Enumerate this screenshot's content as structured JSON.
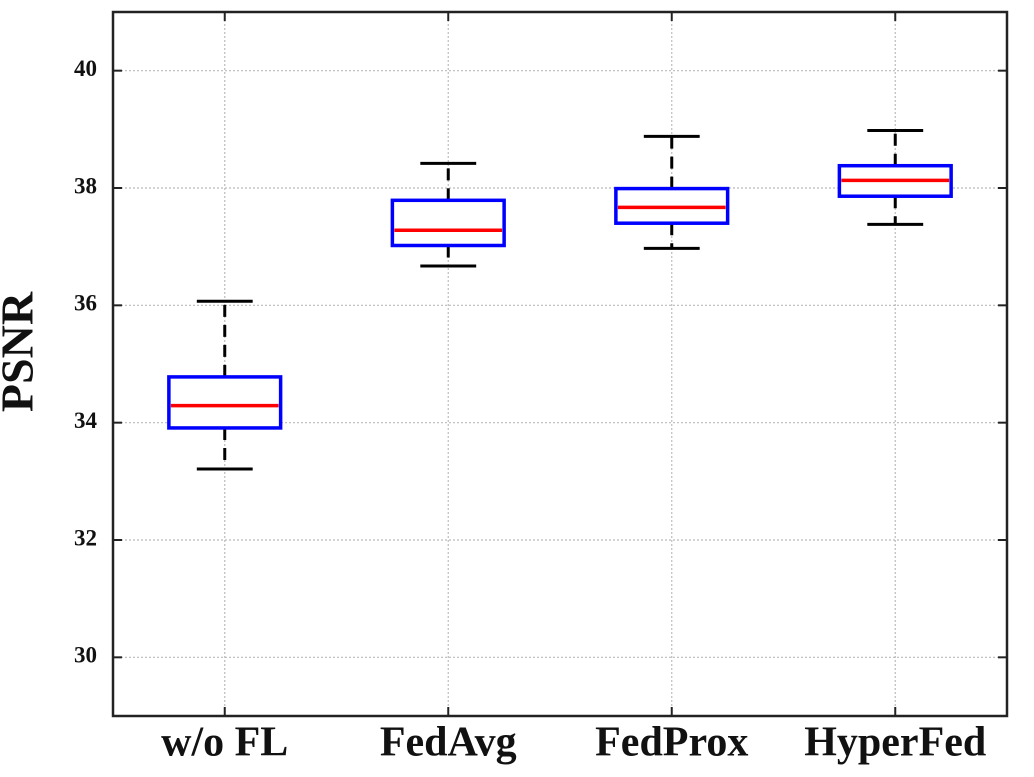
{
  "chart_data": {
    "type": "box",
    "ylabel": "PSNR",
    "categories": [
      "w/o FL",
      "FedAvg",
      "FedProx",
      "HyperFed"
    ],
    "min": [
      33.21,
      36.67,
      36.97,
      37.38
    ],
    "q1": [
      33.91,
      37.02,
      37.4,
      37.86
    ],
    "median": [
      34.29,
      37.28,
      37.67,
      38.13
    ],
    "q3": [
      34.78,
      37.79,
      37.99,
      38.38
    ],
    "max": [
      36.07,
      38.42,
      38.88,
      38.98
    ],
    "box_color": "#0000ff",
    "median_color": "#ff0000",
    "whisker_color": "#000000",
    "ylim": [
      29,
      41
    ],
    "yticks": [
      30,
      32,
      34,
      36,
      38,
      40
    ],
    "grid": true
  }
}
